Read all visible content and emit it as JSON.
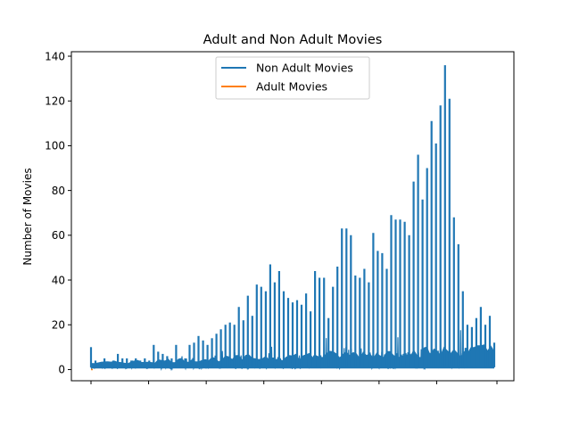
{
  "chart_data": {
    "type": "line",
    "title": "Adult and Non Adult Movies",
    "xlabel": "",
    "ylabel": "Number of Movies",
    "ylim": [
      -5,
      142
    ],
    "yticks": [
      0,
      20,
      40,
      60,
      80,
      100,
      120,
      140
    ],
    "xticks_labeled": false,
    "x_range": [
      0,
      140
    ],
    "legend": "top-center",
    "grid": false,
    "series": [
      {
        "name": "Non Adult Movies",
        "color": "#1f77b4",
        "values": [
          10,
          4,
          3,
          5,
          3,
          4,
          7,
          5,
          5,
          4,
          5,
          4,
          5,
          4,
          11,
          8,
          7,
          6,
          5,
          11,
          5,
          5,
          11,
          12,
          15,
          13,
          11,
          14,
          16,
          18,
          20,
          21,
          20,
          28,
          22,
          33,
          24,
          38,
          37,
          35,
          47,
          39,
          44,
          35,
          32,
          30,
          31,
          29,
          34,
          26,
          44,
          41,
          41,
          23,
          37,
          46,
          63,
          63,
          60,
          42,
          41,
          45,
          39,
          61,
          53,
          52,
          45,
          69,
          67,
          67,
          66,
          60,
          84,
          96,
          76,
          90,
          111,
          101,
          118,
          136,
          121,
          68,
          56,
          35,
          20,
          19,
          23,
          28,
          20,
          24,
          12
        ]
      },
      {
        "name": "Adult Movies",
        "color": "#ff7f0e",
        "values": [
          0
        ]
      }
    ]
  }
}
